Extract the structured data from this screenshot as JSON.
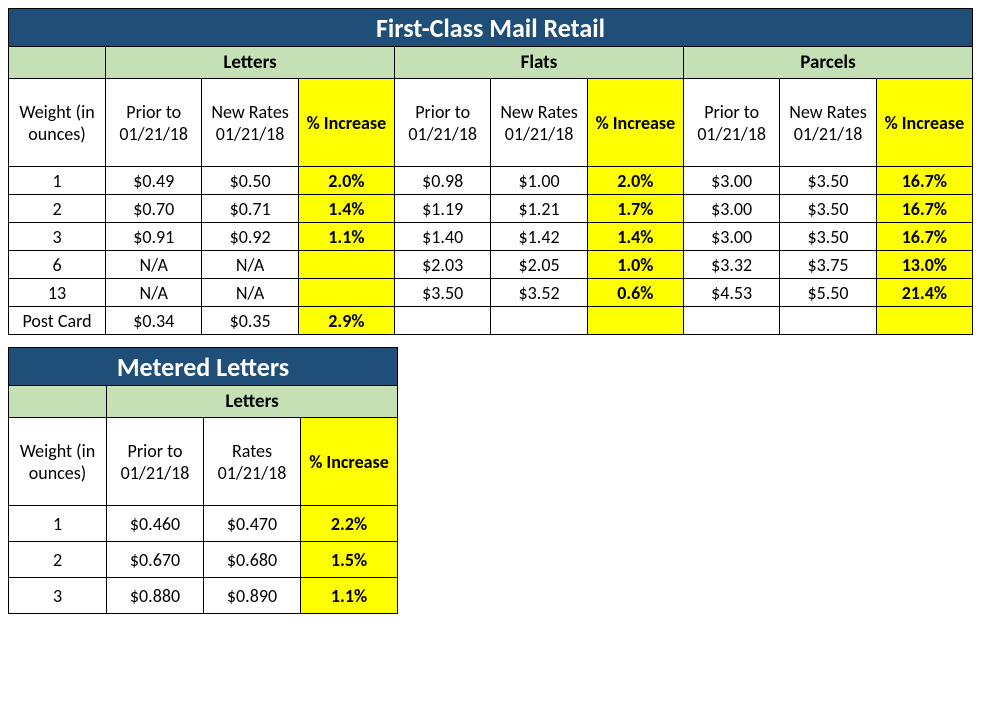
{
  "colors": {
    "title_bg": "#1f4e79",
    "title_text": "#ffffff",
    "category_bg": "#c5e0b4",
    "highlight_bg": "#ffff00",
    "border": "#000000",
    "cell_bg": "#ffffff",
    "text": "#000000"
  },
  "typography": {
    "font_family": "Calibri, Arial, sans-serif",
    "title_fontsize_pt": 20,
    "category_fontsize_pt": 14,
    "cell_fontsize_pt": 13
  },
  "table1": {
    "title": "First-Class Mail Retail",
    "weight_header": "Weight (in ounces)",
    "categories": [
      "Letters",
      "Flats",
      "Parcels"
    ],
    "subheaders": {
      "prior": "Prior to 01/21/18",
      "new": "New Rates 01/21/18",
      "pct": "% Increase"
    },
    "rows": [
      {
        "weight": "1",
        "letters": {
          "prior": "$0.49",
          "new": "$0.50",
          "pct": "2.0%"
        },
        "flats": {
          "prior": "$0.98",
          "new": "$1.00",
          "pct": "2.0%"
        },
        "parcels": {
          "prior": "$3.00",
          "new": "$3.50",
          "pct": "16.7%"
        }
      },
      {
        "weight": "2",
        "letters": {
          "prior": "$0.70",
          "new": "$0.71",
          "pct": "1.4%"
        },
        "flats": {
          "prior": "$1.19",
          "new": "$1.21",
          "pct": "1.7%"
        },
        "parcels": {
          "prior": "$3.00",
          "new": "$3.50",
          "pct": "16.7%"
        }
      },
      {
        "weight": "3",
        "letters": {
          "prior": "$0.91",
          "new": "$0.92",
          "pct": "1.1%"
        },
        "flats": {
          "prior": "$1.40",
          "new": "$1.42",
          "pct": "1.4%"
        },
        "parcels": {
          "prior": "$3.00",
          "new": "$3.50",
          "pct": "16.7%"
        }
      },
      {
        "weight": "6",
        "letters": {
          "prior": "N/A",
          "new": "N/A",
          "pct": ""
        },
        "flats": {
          "prior": "$2.03",
          "new": "$2.05",
          "pct": "1.0%"
        },
        "parcels": {
          "prior": "$3.32",
          "new": "$3.75",
          "pct": "13.0%"
        }
      },
      {
        "weight": "13",
        "letters": {
          "prior": "N/A",
          "new": "N/A",
          "pct": ""
        },
        "flats": {
          "prior": "$3.50",
          "new": "$3.52",
          "pct": "0.6%"
        },
        "parcels": {
          "prior": "$4.53",
          "new": "$5.50",
          "pct": "21.4%"
        }
      },
      {
        "weight": "Post Card",
        "letters": {
          "prior": "$0.34",
          "new": "$0.35",
          "pct": "2.9%"
        },
        "flats": {
          "prior": "",
          "new": "",
          "pct": ""
        },
        "parcels": {
          "prior": "",
          "new": "",
          "pct": ""
        }
      }
    ]
  },
  "table2": {
    "title": "Metered Letters",
    "weight_header": "Weight (in ounces)",
    "categories": [
      "Letters"
    ],
    "subheaders": {
      "prior": "Prior to 01/21/18",
      "new": "Rates 01/21/18",
      "pct": "% Increase"
    },
    "rows": [
      {
        "weight": "1",
        "letters": {
          "prior": "$0.460",
          "new": "$0.470",
          "pct": "2.2%"
        }
      },
      {
        "weight": "2",
        "letters": {
          "prior": "$0.670",
          "new": "$0.680",
          "pct": "1.5%"
        }
      },
      {
        "weight": "3",
        "letters": {
          "prior": "$0.880",
          "new": "$0.890",
          "pct": "1.1%"
        }
      }
    ]
  }
}
